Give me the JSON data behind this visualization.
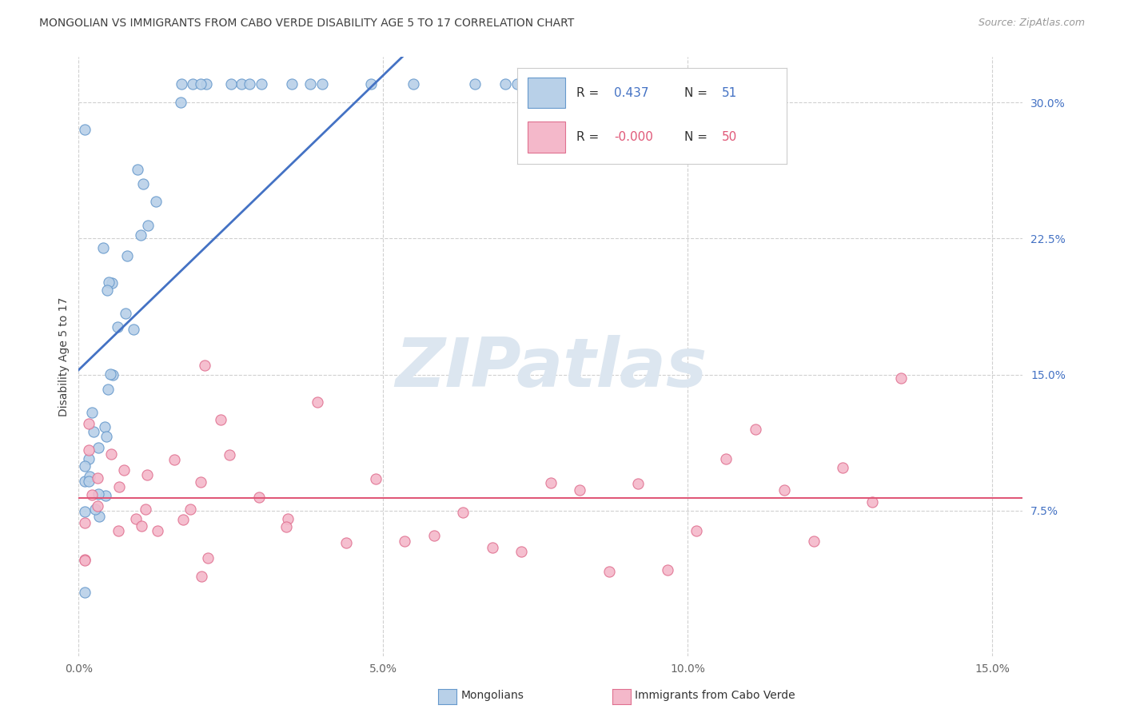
{
  "title": "MONGOLIAN VS IMMIGRANTS FROM CABO VERDE DISABILITY AGE 5 TO 17 CORRELATION CHART",
  "source": "Source: ZipAtlas.com",
  "ylabel": "Disability Age 5 to 17",
  "ytick_vals": [
    0.075,
    0.15,
    0.225,
    0.3
  ],
  "ytick_labels": [
    "7.5%",
    "15.0%",
    "22.5%",
    "30.0%"
  ],
  "xtick_vals": [
    0.0,
    0.05,
    0.1,
    0.15
  ],
  "xtick_labels": [
    "0.0%",
    "5.0%",
    "10.0%",
    "15.0%"
  ],
  "xlim": [
    0.0,
    0.155
  ],
  "ylim": [
    -0.005,
    0.325
  ],
  "legend_r_mongolian": "0.437",
  "legend_n_mongolian": "51",
  "legend_r_caboverde": "-0.000",
  "legend_n_caboverde": "50",
  "watermark": "ZIPatlas",
  "mongolian_fill": "#b8d0e8",
  "mongolian_edge": "#6699cc",
  "caboverde_fill": "#f4b8ca",
  "caboverde_edge": "#e07090",
  "trend_mongolian_color": "#4472c4",
  "trend_caboverde_color": "#e05878",
  "trend_dash_color": "#b0b0b0",
  "background_color": "#ffffff",
  "grid_color": "#d0d0d0",
  "title_color": "#404040",
  "axis_label_color": "#4472c4",
  "watermark_color": "#dce6f0",
  "legend_text_color": "#333333",
  "source_color": "#999999"
}
